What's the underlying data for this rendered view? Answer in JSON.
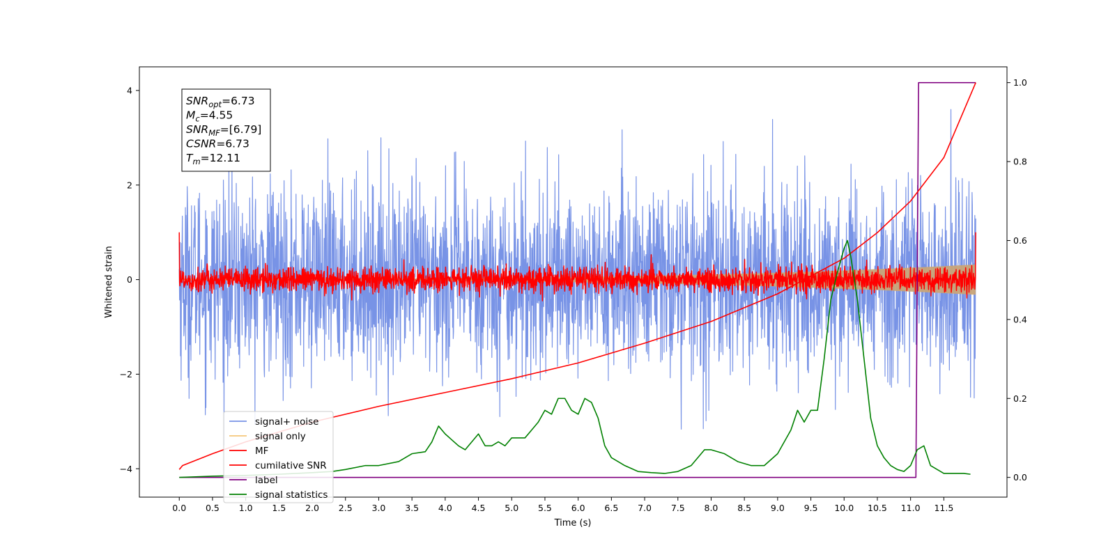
{
  "chart_data": {
    "type": "line",
    "title": "",
    "xlabel": "Time (s)",
    "ylabel": "Whitened strain",
    "ylabel_right": "",
    "xlim": [
      -0.6,
      12.45
    ],
    "ylim": [
      -4.6,
      4.5
    ],
    "ylim_right": [
      -0.05,
      1.04
    ],
    "x_ticks": [
      0.0,
      0.5,
      1.0,
      1.5,
      2.0,
      2.5,
      3.0,
      3.5,
      4.0,
      4.5,
      5.0,
      5.5,
      6.0,
      6.5,
      7.0,
      7.5,
      8.0,
      8.5,
      9.0,
      9.5,
      10.0,
      10.5,
      11.0,
      11.5
    ],
    "x_tick_labels": [
      "0.0",
      "0.5",
      "1.0",
      "1.5",
      "2.0",
      "2.5",
      "3.0",
      "3.5",
      "4.0",
      "4.5",
      "5.0",
      "5.5",
      "6.0",
      "6.5",
      "7.0",
      "7.5",
      "8.0",
      "8.5",
      "9.0",
      "9.5",
      "10.0",
      "10.5",
      "11.0",
      "11.5"
    ],
    "y_ticks": [
      -4,
      -2,
      0,
      2,
      4
    ],
    "y_tick_labels": [
      "−4",
      "−2",
      "0",
      "2",
      "4"
    ],
    "y_ticks_right": [
      0.0,
      0.2,
      0.4,
      0.6,
      0.8,
      1.0
    ],
    "y_tick_labels_right": [
      "0.0",
      "0.2",
      "0.4",
      "0.6",
      "0.8",
      "1.0"
    ],
    "grid": false,
    "legend_position": "lower-left",
    "info_box": [
      {
        "base": "SNR",
        "sub": "opt",
        "value": "=6.73"
      },
      {
        "base": "M",
        "sub": "c",
        "value": "=4.55"
      },
      {
        "base": "SNR",
        "sub": "MF",
        "value": "=[6.79]"
      },
      {
        "base": "CSNR",
        "sub": "",
        "value": "=6.73"
      },
      {
        "base": "T",
        "sub": "m",
        "value": "=12.11"
      }
    ],
    "series": [
      {
        "name": "signal+ noise",
        "color": "#7893e6",
        "axis": "left",
        "kind": "noise",
        "sigma": 1.0,
        "x_range": [
          0.0,
          11.98
        ]
      },
      {
        "name": "signal only",
        "color": "#f5c67a",
        "axis": "left",
        "kind": "chirp-envelope",
        "x_range": [
          0.0,
          11.98
        ],
        "amplitude_start": 0.02,
        "amplitude_end": 0.32
      },
      {
        "name": "MF",
        "color": "#ff0000",
        "axis": "left",
        "kind": "noise",
        "sigma": 0.13,
        "x_range": [
          0.0,
          11.98
        ]
      },
      {
        "name": "cumilative SNR",
        "color": "#ff0000",
        "axis": "right",
        "x": [
          0.0,
          0.05,
          0.5,
          1.0,
          2.0,
          3.0,
          4.0,
          5.0,
          6.0,
          7.0,
          8.0,
          9.0,
          9.5,
          10.0,
          10.5,
          11.0,
          11.5,
          11.98
        ],
        "y": [
          0.02,
          0.03,
          0.06,
          0.09,
          0.14,
          0.18,
          0.215,
          0.25,
          0.29,
          0.34,
          0.395,
          0.465,
          0.51,
          0.555,
          0.62,
          0.7,
          0.81,
          1.0
        ]
      },
      {
        "name": "label",
        "color": "#800080",
        "axis": "right",
        "x": [
          0.0,
          11.08,
          11.12,
          11.98
        ],
        "y": [
          0.0,
          0.0,
          1.0,
          1.0
        ]
      },
      {
        "name": "signal statistics",
        "color": "#008000",
        "axis": "right",
        "x": [
          0.0,
          0.5,
          1.0,
          1.5,
          2.0,
          2.3,
          2.5,
          2.8,
          3.0,
          3.3,
          3.5,
          3.7,
          3.8,
          3.9,
          4.0,
          4.1,
          4.2,
          4.3,
          4.4,
          4.5,
          4.6,
          4.7,
          4.8,
          4.9,
          5.0,
          5.1,
          5.2,
          5.3,
          5.4,
          5.5,
          5.6,
          5.7,
          5.8,
          5.9,
          6.0,
          6.1,
          6.2,
          6.3,
          6.4,
          6.5,
          6.7,
          6.9,
          7.1,
          7.3,
          7.5,
          7.7,
          7.9,
          8.0,
          8.2,
          8.4,
          8.6,
          8.8,
          9.0,
          9.1,
          9.2,
          9.3,
          9.4,
          9.5,
          9.6,
          9.7,
          9.8,
          9.9,
          10.0,
          10.05,
          10.1,
          10.2,
          10.3,
          10.4,
          10.5,
          10.6,
          10.7,
          10.8,
          10.9,
          11.0,
          11.1,
          11.2,
          11.3,
          11.5,
          11.8,
          11.9
        ],
        "y": [
          0.0,
          0.003,
          0.005,
          0.008,
          0.012,
          0.015,
          0.02,
          0.03,
          0.03,
          0.04,
          0.06,
          0.065,
          0.09,
          0.13,
          0.11,
          0.095,
          0.08,
          0.07,
          0.09,
          0.11,
          0.08,
          0.08,
          0.09,
          0.08,
          0.1,
          0.1,
          0.1,
          0.12,
          0.14,
          0.17,
          0.16,
          0.2,
          0.2,
          0.17,
          0.16,
          0.2,
          0.19,
          0.15,
          0.08,
          0.05,
          0.03,
          0.015,
          0.012,
          0.01,
          0.015,
          0.03,
          0.07,
          0.07,
          0.06,
          0.04,
          0.03,
          0.03,
          0.06,
          0.09,
          0.12,
          0.17,
          0.14,
          0.17,
          0.17,
          0.3,
          0.45,
          0.52,
          0.58,
          0.6,
          0.56,
          0.45,
          0.3,
          0.15,
          0.08,
          0.05,
          0.03,
          0.02,
          0.015,
          0.03,
          0.07,
          0.08,
          0.03,
          0.01,
          0.01,
          0.008
        ]
      }
    ]
  }
}
